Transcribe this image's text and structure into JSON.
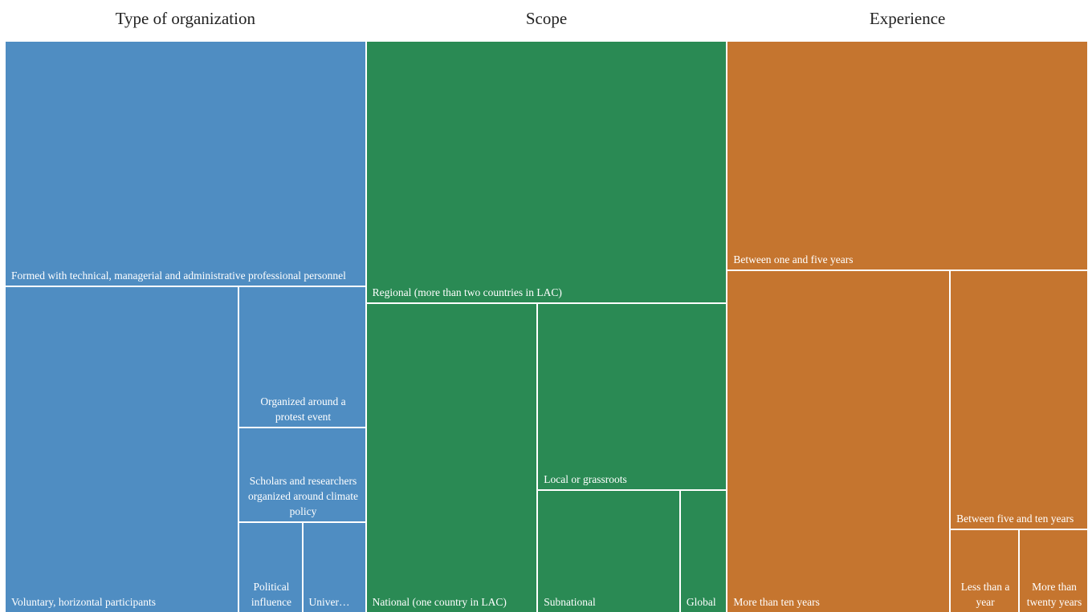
{
  "chart_data": {
    "type": "treemap",
    "groups": [
      {
        "title": "Type of organization",
        "color": "#4f8dc2",
        "categories": [
          "Formed with technical, managerial and administrative professional personnel",
          "Voluntary, horizontal participants",
          "Organized around a protest event",
          "Scholars and researchers organized around climate policy",
          "Political influence",
          "Univer…"
        ],
        "values": [
          42.9,
          37.0,
          8.7,
          5.8,
          2.8,
          2.8
        ]
      },
      {
        "title": "Scope",
        "color": "#2a8a54",
        "categories": [
          "Regional (more than two countries in LAC)",
          "National (one country in LAC)",
          "Local or grassroots",
          "Subnational",
          "Global"
        ],
        "values": [
          45.9,
          25.7,
          17.1,
          8.5,
          2.8
        ]
      },
      {
        "title": "Experience",
        "color": "#c5752f",
        "categories": [
          "Between one and five years",
          "More than ten years",
          "Between five and ten years",
          "Less than a year",
          "More than twenty years"
        ],
        "values": [
          40.1,
          37.0,
          17.3,
          2.8,
          2.8
        ]
      }
    ]
  }
}
